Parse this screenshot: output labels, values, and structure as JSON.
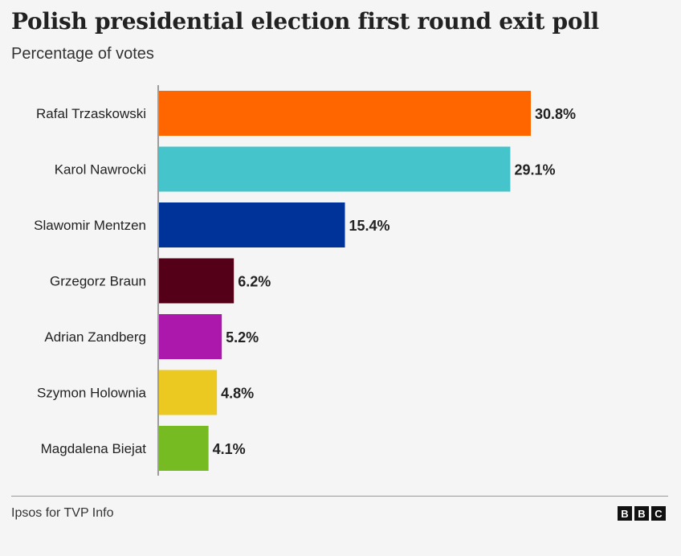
{
  "chart_data": {
    "type": "bar",
    "orientation": "horizontal",
    "title": "Polish presidential election first round exit poll",
    "subtitle": "Percentage of votes",
    "categories": [
      "Rafal Trzaskowski",
      "Karol Nawrocki",
      "Slawomir Mentzen",
      "Grzegorz Braun",
      "Adrian Zandberg",
      "Szymon Holownia",
      "Magdalena Biejat"
    ],
    "values": [
      30.8,
      29.1,
      15.4,
      6.2,
      5.2,
      4.8,
      4.1
    ],
    "value_labels": [
      "30.8%",
      "29.1%",
      "15.4%",
      "6.2%",
      "5.2%",
      "4.8%",
      "4.1%"
    ],
    "colors": [
      "#ff6600",
      "#46c4cc",
      "#00339a",
      "#550019",
      "#ac17ac",
      "#ebc920",
      "#77bb22"
    ],
    "xlim": [
      0,
      32
    ],
    "grid": false,
    "legend": "none"
  },
  "footer": {
    "source": "Ipsos for TVP Info",
    "logo_letters": [
      "B",
      "B",
      "C"
    ]
  }
}
